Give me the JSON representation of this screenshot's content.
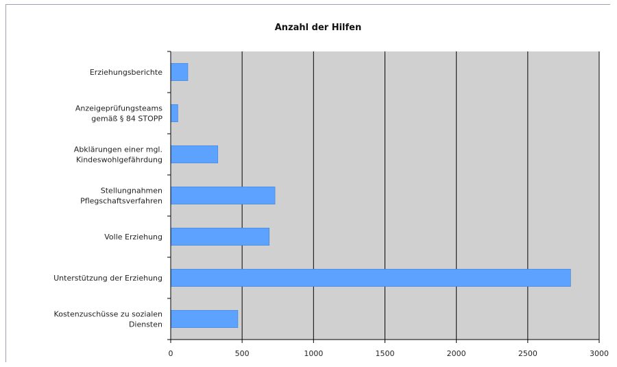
{
  "chart_data": {
    "type": "bar",
    "orientation": "horizontal",
    "title": "Anzahl der Hilfen",
    "xlabel": "",
    "ylabel": "",
    "categories": [
      [
        "Erziehungsberichte"
      ],
      [
        "Anzeigeprüfungsteams",
        "gemäß § 84 STOPP"
      ],
      [
        "Abklärungen einer mgl.",
        "Kindeswohlgefährdung"
      ],
      [
        "Stellungnahmen",
        "Pflegschaftsverfahren"
      ],
      [
        "Volle Erziehung"
      ],
      [
        "Unterstützung der Erziehung"
      ],
      [
        "Kostenzuschüsse zu sozialen",
        "Diensten"
      ]
    ],
    "values": [
      120,
      50,
      330,
      730,
      690,
      2800,
      470
    ],
    "xlim": [
      0,
      3000
    ],
    "xticks": [
      "0",
      "500",
      "1000",
      "1500",
      "2000",
      "2500",
      "3000"
    ],
    "grid": true,
    "colors": {
      "bar": "#5ea2ff",
      "bar_edge": "#3b7fd8",
      "plot_bg": "#d0d0d0",
      "grid": "#000000"
    }
  }
}
